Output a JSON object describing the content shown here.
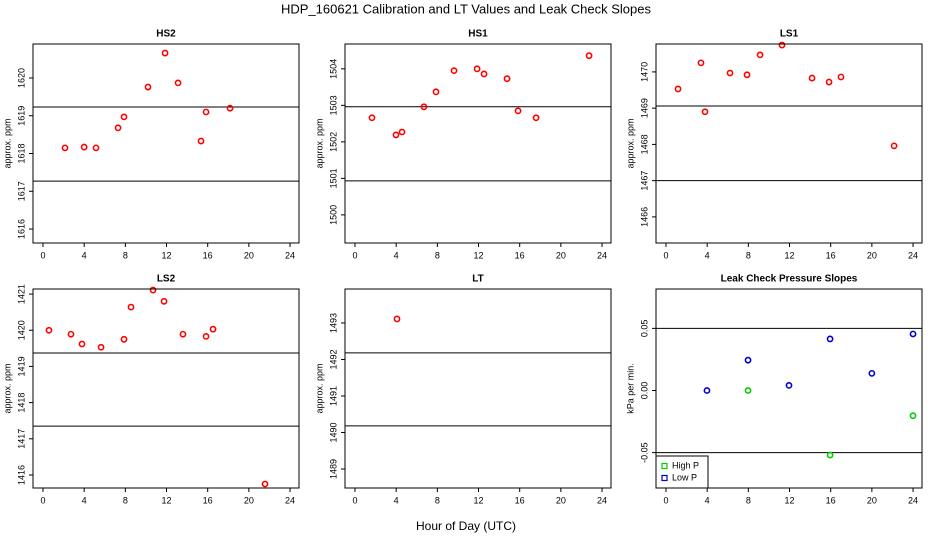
{
  "title": "HDP_160621  Calibration and LT Values and Leak Check Slopes",
  "x_label": "Hour of Day (UTC)",
  "chart_data": [
    {
      "type": "scatter",
      "title": "HS2",
      "y_label": "approx. ppm",
      "color": "#ff0000",
      "x": [
        2.14,
        4.0,
        5.15,
        7.29,
        7.87,
        10.2,
        11.86,
        13.12,
        15.35,
        15.84,
        18.17
      ],
      "values": [
        1618.15,
        1618.17,
        1618.15,
        1618.68,
        1618.97,
        1619.76,
        1620.66,
        1619.87,
        1618.33,
        1619.1,
        1619.2
      ],
      "xlim": [
        -0.97,
        24.87
      ],
      "ylim": [
        1615.63,
        1620.9
      ],
      "xticks": [
        0,
        4,
        8,
        12,
        16,
        20,
        24
      ],
      "yticks": [
        1616,
        1617,
        1618,
        1619,
        1620
      ],
      "hlines": [
        1619.23,
        1617.27
      ]
    },
    {
      "type": "scatter",
      "title": "HS1",
      "y_label": "approx. ppm",
      "color": "#ff0000",
      "x": [
        1.65,
        3.98,
        4.57,
        6.7,
        7.87,
        9.62,
        11.86,
        12.54,
        14.77,
        15.84,
        17.59,
        22.74
      ],
      "values": [
        1502.66,
        1502.19,
        1502.27,
        1502.96,
        1503.37,
        1503.95,
        1504.0,
        1503.86,
        1503.73,
        1502.85,
        1502.66,
        1504.36
      ],
      "xlim": [
        -0.97,
        24.87
      ],
      "ylim": [
        1499.23,
        1504.68
      ],
      "xticks": [
        0,
        4,
        8,
        12,
        16,
        20,
        24
      ],
      "yticks": [
        1500,
        1501,
        1502,
        1503,
        1504
      ],
      "hlines": [
        1502.96,
        1500.93
      ]
    },
    {
      "type": "scatter",
      "title": "LS1",
      "y_label": "approx. ppm",
      "color": "#ff0000",
      "x": [
        1.17,
        3.4,
        3.79,
        6.22,
        7.87,
        9.14,
        11.27,
        14.19,
        15.84,
        17.0,
        22.16
      ],
      "values": [
        1469.53,
        1470.25,
        1468.9,
        1469.97,
        1469.92,
        1470.47,
        1470.74,
        1469.83,
        1469.72,
        1469.86,
        1467.96
      ],
      "xlim": [
        -0.97,
        24.87
      ],
      "ylim": [
        1465.28,
        1470.77
      ],
      "xticks": [
        0,
        4,
        8,
        12,
        16,
        20,
        24
      ],
      "yticks": [
        1466,
        1467,
        1468,
        1469,
        1470
      ],
      "hlines": [
        1469.06,
        1467.0
      ]
    },
    {
      "type": "scatter",
      "title": "LS2",
      "y_label": "approx. ppm",
      "color": "#ff0000",
      "x": [
        0.58,
        2.72,
        3.79,
        5.64,
        7.87,
        8.55,
        10.69,
        11.76,
        13.6,
        15.84,
        16.52,
        21.57
      ],
      "values": [
        1420.0,
        1419.89,
        1419.62,
        1419.53,
        1419.75,
        1420.64,
        1421.11,
        1420.8,
        1419.89,
        1419.83,
        1420.03,
        1415.75
      ],
      "xlim": [
        -0.97,
        24.87
      ],
      "ylim": [
        1415.64,
        1421.14
      ],
      "xticks": [
        0,
        4,
        8,
        12,
        16,
        20,
        24
      ],
      "yticks": [
        1416,
        1417,
        1418,
        1419,
        1420,
        1421
      ],
      "hlines": [
        1419.37,
        1417.35
      ]
    },
    {
      "type": "scatter",
      "title": "LT",
      "y_label": "approx. ppm",
      "color": "#ff0000",
      "x": [
        4.08
      ],
      "values": [
        1493.11
      ],
      "xlim": [
        -0.97,
        24.87
      ],
      "ylim": [
        1488.48,
        1493.93
      ],
      "xticks": [
        0,
        4,
        8,
        12,
        16,
        20,
        24
      ],
      "yticks": [
        1489,
        1490,
        1491,
        1492,
        1493
      ],
      "hlines": [
        1492.18,
        1490.18
      ]
    },
    {
      "type": "scatter",
      "title": "Leak Check Pressure Slopes",
      "y_label": "kPa per min.",
      "series": [
        {
          "name": "High P",
          "color": "#00cc00",
          "x": [
            7.97,
            15.94,
            24.0
          ],
          "values": [
            0.0,
            -0.052,
            -0.0203
          ]
        },
        {
          "name": "Low P",
          "color": "#0000cc",
          "x": [
            3.98,
            7.97,
            11.95,
            15.94,
            20.0,
            24.0
          ],
          "values": [
            0.0,
            0.0244,
            0.0041,
            0.0415,
            0.0138,
            0.0455
          ]
        }
      ],
      "legend": "bottomleft",
      "xlim": [
        -0.97,
        24.87
      ],
      "ylim": [
        -0.0785,
        0.0817
      ],
      "xticks": [
        0,
        4,
        8,
        12,
        16,
        20,
        24
      ],
      "yticks": [
        -0.05,
        {
          "value": 0,
          "label": "0.00"
        },
        0.05
      ],
      "hlines": [
        0.05,
        -0.05
      ]
    }
  ]
}
